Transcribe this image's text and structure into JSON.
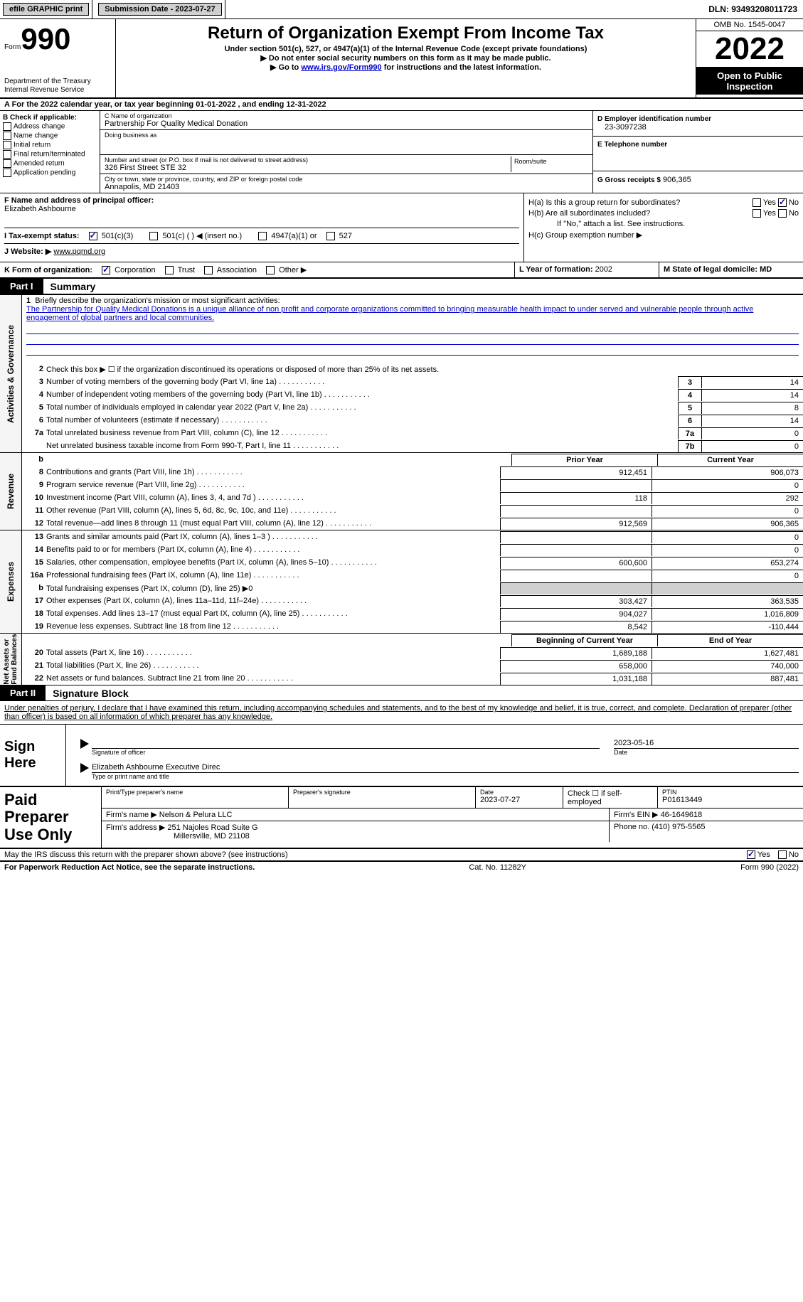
{
  "topbar": {
    "efile": "efile GRAPHIC print",
    "submission": "Submission Date - 2023-07-27",
    "dln": "DLN: 93493208011723"
  },
  "header": {
    "form_word": "Form",
    "form_num": "990",
    "dept": "Department of the Treasury\nInternal Revenue Service",
    "title": "Return of Organization Exempt From Income Tax",
    "sub": "Under section 501(c), 527, or 4947(a)(1) of the Internal Revenue Code (except private foundations)",
    "note1": "▶ Do not enter social security numbers on this form as it may be made public.",
    "note2_pre": "▶ Go to ",
    "note2_link": "www.irs.gov/Form990",
    "note2_post": " for instructions and the latest information.",
    "omb": "OMB No. 1545-0047",
    "year": "2022",
    "open": "Open to Public Inspection"
  },
  "row_a": "A  For the 2022 calendar year, or tax year beginning 01-01-2022    , and ending 12-31-2022",
  "col_b": {
    "title": "B Check if applicable:",
    "items": [
      "Address change",
      "Name change",
      "Initial return",
      "Final return/terminated",
      "Amended return",
      "Application pending"
    ]
  },
  "col_c": {
    "name_lab": "C Name of organization",
    "name": "Partnership For Quality Medical Donation",
    "dba_lab": "Doing business as",
    "addr_lab": "Number and street (or P.O. box if mail is not delivered to street address)",
    "addr": "326 First Street STE 32",
    "room_lab": "Room/suite",
    "city_lab": "City or town, state or province, country, and ZIP or foreign postal code",
    "city": "Annapolis, MD  21403"
  },
  "col_d": {
    "ein_lab": "D Employer identification number",
    "ein": "23-3097238",
    "tel_lab": "E Telephone number",
    "gross_lab": "G Gross receipts $",
    "gross": "906,365"
  },
  "f": {
    "lab": "F  Name and address of principal officer:",
    "name": "Elizabeth Ashbourne"
  },
  "h": {
    "a": "H(a)  Is this a group return for subordinates?",
    "b": "H(b)  Are all subordinates included?",
    "b_note": "If \"No,\" attach a list. See instructions.",
    "c": "H(c)  Group exemption number ▶",
    "yes": "Yes",
    "no": "No"
  },
  "i": {
    "lab": "I   Tax-exempt status:",
    "opts": [
      "501(c)(3)",
      "501(c) (  ) ◀ (insert no.)",
      "4947(a)(1) or",
      "527"
    ]
  },
  "j": {
    "lab": "J   Website: ▶",
    "val": " www.pqmd.org"
  },
  "k": {
    "lab": "K Form of organization:",
    "opts": [
      "Corporation",
      "Trust",
      "Association",
      "Other ▶"
    ],
    "l_lab": "L Year of formation:",
    "l_val": "2002",
    "m_lab": "M State of legal domicile: MD"
  },
  "part1": {
    "tab": "Part I",
    "title": "Summary",
    "line1_lab": "Briefly describe the organization's mission or most significant activities:",
    "line1_txt": "The Partnership for Quality Medical Donations is a unique alliance of non profit and corporate organizations committed to bringing measurable health impact to under served and vulnerable people through active engagement of global partners and local communities.",
    "line2": "Check this box ▶ ☐  if the organization discontinued its operations or disposed of more than 25% of its net assets.",
    "lines": [
      {
        "n": "3",
        "d": "Number of voting members of the governing body (Part VI, line 1a)",
        "c": "3",
        "v": "14"
      },
      {
        "n": "4",
        "d": "Number of independent voting members of the governing body (Part VI, line 1b)",
        "c": "4",
        "v": "14"
      },
      {
        "n": "5",
        "d": "Total number of individuals employed in calendar year 2022 (Part V, line 2a)",
        "c": "5",
        "v": "8"
      },
      {
        "n": "6",
        "d": "Total number of volunteers (estimate if necessary)",
        "c": "6",
        "v": "14"
      },
      {
        "n": "7a",
        "d": "Total unrelated business revenue from Part VIII, column (C), line 12",
        "c": "7a",
        "v": "0"
      },
      {
        "n": "",
        "d": "Net unrelated business taxable income from Form 990-T, Part I, line 11",
        "c": "7b",
        "v": "0"
      }
    ],
    "col_prior": "Prior Year",
    "col_curr": "Current Year",
    "rev": [
      {
        "n": "8",
        "d": "Contributions and grants (Part VIII, line 1h)",
        "p": "912,451",
        "c": "906,073"
      },
      {
        "n": "9",
        "d": "Program service revenue (Part VIII, line 2g)",
        "p": "",
        "c": "0"
      },
      {
        "n": "10",
        "d": "Investment income (Part VIII, column (A), lines 3, 4, and 7d )",
        "p": "118",
        "c": "292"
      },
      {
        "n": "11",
        "d": "Other revenue (Part VIII, column (A), lines 5, 6d, 8c, 9c, 10c, and 11e)",
        "p": "",
        "c": "0"
      },
      {
        "n": "12",
        "d": "Total revenue—add lines 8 through 11 (must equal Part VIII, column (A), line 12)",
        "p": "912,569",
        "c": "906,365"
      }
    ],
    "exp": [
      {
        "n": "13",
        "d": "Grants and similar amounts paid (Part IX, column (A), lines 1–3 )",
        "p": "",
        "c": "0"
      },
      {
        "n": "14",
        "d": "Benefits paid to or for members (Part IX, column (A), line 4)",
        "p": "",
        "c": "0"
      },
      {
        "n": "15",
        "d": "Salaries, other compensation, employee benefits (Part IX, column (A), lines 5–10)",
        "p": "600,600",
        "c": "653,274"
      },
      {
        "n": "16a",
        "d": "Professional fundraising fees (Part IX, column (A), line 11e)",
        "p": "",
        "c": "0"
      },
      {
        "n": "b",
        "d": "Total fundraising expenses (Part IX, column (D), line 25) ▶0",
        "p": "shade",
        "c": "shade"
      },
      {
        "n": "17",
        "d": "Other expenses (Part IX, column (A), lines 11a–11d, 11f–24e)",
        "p": "303,427",
        "c": "363,535"
      },
      {
        "n": "18",
        "d": "Total expenses. Add lines 13–17 (must equal Part IX, column (A), line 25)",
        "p": "904,027",
        "c": "1,016,809"
      },
      {
        "n": "19",
        "d": "Revenue less expenses. Subtract line 18 from line 12",
        "p": "8,542",
        "c": "-110,444"
      }
    ],
    "col_beg": "Beginning of Current Year",
    "col_end": "End of Year",
    "net": [
      {
        "n": "20",
        "d": "Total assets (Part X, line 16)",
        "p": "1,689,188",
        "c": "1,627,481"
      },
      {
        "n": "21",
        "d": "Total liabilities (Part X, line 26)",
        "p": "658,000",
        "c": "740,000"
      },
      {
        "n": "22",
        "d": "Net assets or fund balances. Subtract line 21 from line 20",
        "p": "1,031,188",
        "c": "887,481"
      }
    ]
  },
  "part2": {
    "tab": "Part II",
    "title": "Signature Block",
    "decl": "Under penalties of perjury, I declare that I have examined this return, including accompanying schedules and statements, and to the best of my knowledge and belief, it is true, correct, and complete. Declaration of preparer (other than officer) is based on all information of which preparer has any knowledge.",
    "sign": "Sign Here",
    "sig_of": "Signature of officer",
    "sig_date": "2023-05-16",
    "date_lab": "Date",
    "name": "Elizabeth Ashbourne  Executive Direc",
    "name_lab": "Type or print name and title"
  },
  "prep": {
    "title": "Paid Preparer Use Only",
    "h1": "Print/Type preparer's name",
    "h2": "Preparer's signature",
    "h3_lab": "Date",
    "h3": "2023-07-27",
    "h4": "Check ☐ if self-employed",
    "h5_lab": "PTIN",
    "h5": "P01613449",
    "firm_lab": "Firm's name     ▶",
    "firm": "Nelson & Pelura LLC",
    "ein_lab": "Firm's EIN ▶",
    "ein": "46-1649618",
    "addr_lab": "Firm's address ▶",
    "addr1": "251 Najoles Road Suite G",
    "addr2": "Millersville, MD  21108",
    "phone_lab": "Phone no.",
    "phone": "(410) 975-5565"
  },
  "footer_q": "May the IRS discuss this return with the preparer shown above? (see instructions)",
  "footer": {
    "left": "For Paperwork Reduction Act Notice, see the separate instructions.",
    "mid": "Cat. No. 11282Y",
    "right": "Form 990 (2022)"
  }
}
